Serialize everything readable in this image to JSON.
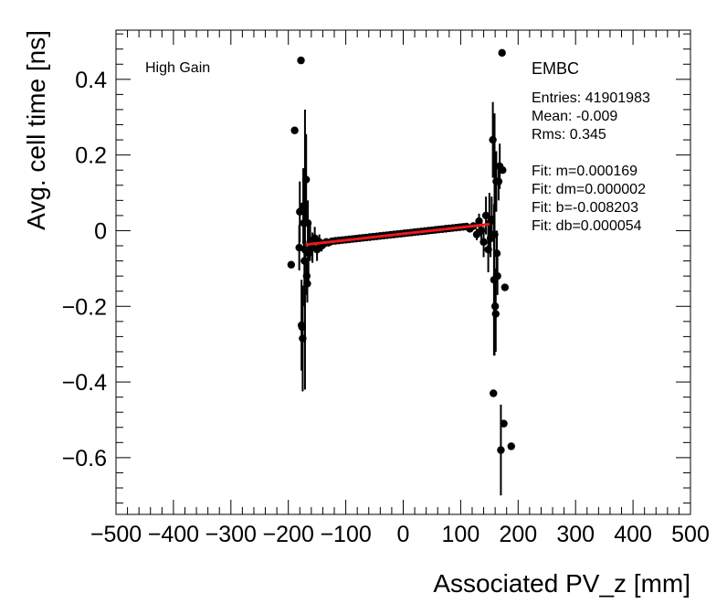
{
  "chart_data": {
    "type": "scatter",
    "title": "",
    "xlabel": "Associated PV_z [mm]",
    "ylabel": "Avg. cell time [ns]",
    "xlim": [
      -500,
      500
    ],
    "ylim": [
      -0.75,
      0.53
    ],
    "x_ticks": [
      -500,
      -400,
      -300,
      -200,
      -100,
      0,
      100,
      200,
      300,
      400,
      500
    ],
    "x_tick_labels": [
      "−500",
      "−400",
      "−300",
      "−200",
      "−100",
      "0",
      "100",
      "200",
      "300",
      "400",
      "500"
    ],
    "y_ticks": [
      -0.6,
      -0.4,
      -0.2,
      0,
      0.2,
      0.4
    ],
    "y_tick_labels": [
      "−0.6",
      "−0.4",
      "−0.2",
      "0",
      "0.2",
      "0.4"
    ],
    "grid": false,
    "legend": "none",
    "label_left": "High Gain",
    "label_right": "EMBC",
    "stats": [
      "Entries: 41901983",
      "Mean: -0.009",
      "Rms: 0.345",
      "",
      "Fit: m=0.000169",
      "Fit: dm=0.000002",
      "Fit: b=-0.008203",
      "Fit: db=0.000054"
    ],
    "series": [
      {
        "name": "data points with error bars",
        "color": "#000000",
        "points": [
          {
            "x": -195,
            "y": -0.09,
            "err": 0
          },
          {
            "x": -189,
            "y": 0.265,
            "err": 0
          },
          {
            "x": -181,
            "y": -0.045,
            "err": 0.06
          },
          {
            "x": -180,
            "y": 0.05,
            "err": 0.08
          },
          {
            "x": -178,
            "y": 0.45,
            "err": 0
          },
          {
            "x": -177,
            "y": -0.25,
            "err": 0.12
          },
          {
            "x": -176,
            "y": -0.255,
            "err": 0.1
          },
          {
            "x": -175,
            "y": -0.285,
            "err": 0.14
          },
          {
            "x": -174,
            "y": 0.065,
            "err": 0.1
          },
          {
            "x": -173,
            "y": 0.02,
            "err": 0.08
          },
          {
            "x": -172,
            "y": -0.08,
            "err": 0.12
          },
          {
            "x": -171,
            "y": -0.05,
            "err": 0.37
          },
          {
            "x": -169,
            "y": 0.135,
            "err": 0.12
          },
          {
            "x": -168,
            "y": -0.12,
            "err": 0.05
          },
          {
            "x": -167,
            "y": -0.14,
            "err": 0.05
          },
          {
            "x": -166,
            "y": 0.02,
            "err": 0.06
          },
          {
            "x": -165,
            "y": -0.06,
            "err": 0.08
          },
          {
            "x": -162,
            "y": -0.03,
            "err": 0.05
          },
          {
            "x": -158,
            "y": -0.045,
            "err": 0.04
          },
          {
            "x": -154,
            "y": -0.02,
            "err": 0.03
          },
          {
            "x": -150,
            "y": -0.05,
            "err": 0.03
          },
          {
            "x": -146,
            "y": -0.03,
            "err": 0.02
          },
          {
            "x": -142,
            "y": -0.04,
            "err": 0.015
          },
          {
            "x": -138,
            "y": -0.035,
            "err": 0.012
          },
          {
            "x": -134,
            "y": -0.03,
            "err": 0.01
          },
          {
            "x": -130,
            "y": -0.032,
            "err": 0.008
          },
          {
            "x": -124,
            "y": -0.028,
            "err": 0.006
          },
          {
            "x": -118,
            "y": -0.027,
            "err": 0.005
          },
          {
            "x": -112,
            "y": -0.026,
            "err": 0.004
          },
          {
            "x": -106,
            "y": -0.025,
            "err": 0.004
          },
          {
            "x": -100,
            "y": -0.024,
            "err": 0.003
          },
          {
            "x": -94,
            "y": -0.023,
            "err": 0.003
          },
          {
            "x": -88,
            "y": -0.022,
            "err": 0.003
          },
          {
            "x": -82,
            "y": -0.021,
            "err": 0.003
          },
          {
            "x": -76,
            "y": -0.02,
            "err": 0.002
          },
          {
            "x": -70,
            "y": -0.019,
            "err": 0.002
          },
          {
            "x": -64,
            "y": -0.018,
            "err": 0.002
          },
          {
            "x": -58,
            "y": -0.017,
            "err": 0.002
          },
          {
            "x": -52,
            "y": -0.016,
            "err": 0.002
          },
          {
            "x": -46,
            "y": -0.015,
            "err": 0.002
          },
          {
            "x": -40,
            "y": -0.014,
            "err": 0.002
          },
          {
            "x": -34,
            "y": -0.013,
            "err": 0.002
          },
          {
            "x": -28,
            "y": -0.012,
            "err": 0.002
          },
          {
            "x": -22,
            "y": -0.011,
            "err": 0.002
          },
          {
            "x": -16,
            "y": -0.01,
            "err": 0.002
          },
          {
            "x": -10,
            "y": -0.009,
            "err": 0.002
          },
          {
            "x": -4,
            "y": -0.008,
            "err": 0.002
          },
          {
            "x": 2,
            "y": -0.007,
            "err": 0.002
          },
          {
            "x": 8,
            "y": -0.006,
            "err": 0.002
          },
          {
            "x": 14,
            "y": -0.005,
            "err": 0.002
          },
          {
            "x": 20,
            "y": -0.004,
            "err": 0.002
          },
          {
            "x": 26,
            "y": -0.003,
            "err": 0.002
          },
          {
            "x": 32,
            "y": -0.002,
            "err": 0.002
          },
          {
            "x": 38,
            "y": -0.001,
            "err": 0.002
          },
          {
            "x": 44,
            "y": 0.0,
            "err": 0.002
          },
          {
            "x": 50,
            "y": 0.001,
            "err": 0.002
          },
          {
            "x": 56,
            "y": 0.002,
            "err": 0.002
          },
          {
            "x": 62,
            "y": 0.003,
            "err": 0.003
          },
          {
            "x": 68,
            "y": 0.004,
            "err": 0.003
          },
          {
            "x": 74,
            "y": 0.005,
            "err": 0.003
          },
          {
            "x": 80,
            "y": 0.006,
            "err": 0.003
          },
          {
            "x": 86,
            "y": 0.007,
            "err": 0.003
          },
          {
            "x": 92,
            "y": 0.008,
            "err": 0.004
          },
          {
            "x": 98,
            "y": 0.009,
            "err": 0.004
          },
          {
            "x": 104,
            "y": 0.01,
            "err": 0.005
          },
          {
            "x": 110,
            "y": 0.011,
            "err": 0.006
          },
          {
            "x": 116,
            "y": 0.005,
            "err": 0.008
          },
          {
            "x": 122,
            "y": 0.012,
            "err": 0.01
          },
          {
            "x": 128,
            "y": -0.01,
            "err": 0.015
          },
          {
            "x": 132,
            "y": 0.025,
            "err": 0.02
          },
          {
            "x": 136,
            "y": 0.0,
            "err": 0.03
          },
          {
            "x": 140,
            "y": -0.03,
            "err": 0.04
          },
          {
            "x": 144,
            "y": 0.04,
            "err": 0.05
          },
          {
            "x": 148,
            "y": -0.05,
            "err": 0.06
          },
          {
            "x": 150,
            "y": 0.02,
            "err": 0.08
          },
          {
            "x": 152,
            "y": -0.02,
            "err": 0.05
          },
          {
            "x": 154,
            "y": 0.03,
            "err": 0.06
          },
          {
            "x": 156,
            "y": 0.24,
            "err": 0.1
          },
          {
            "x": 157,
            "y": -0.43,
            "err": 0
          },
          {
            "x": 158,
            "y": -0.13,
            "err": 0.2
          },
          {
            "x": 159,
            "y": -0.01,
            "err": 0.32
          },
          {
            "x": 160,
            "y": -0.2,
            "err": 0.1
          },
          {
            "x": 161,
            "y": -0.22,
            "err": 0.1
          },
          {
            "x": 162,
            "y": 0.13,
            "err": 0.08
          },
          {
            "x": 163,
            "y": -0.06,
            "err": 0.06
          },
          {
            "x": 164,
            "y": -0.12,
            "err": 0.05
          },
          {
            "x": 166,
            "y": 0.13,
            "err": 0.05
          },
          {
            "x": 168,
            "y": 0.17,
            "err": 0.06
          },
          {
            "x": 170,
            "y": -0.58,
            "err": 0.12
          },
          {
            "x": 172,
            "y": 0.47,
            "err": 0
          },
          {
            "x": 173,
            "y": 0.16,
            "err": 0
          },
          {
            "x": 175,
            "y": -0.51,
            "err": 0
          },
          {
            "x": 177,
            "y": -0.15,
            "err": 0
          },
          {
            "x": 188,
            "y": -0.57,
            "err": 0
          }
        ]
      },
      {
        "name": "linear fit",
        "color": "#e8191b",
        "x": [
          -170,
          150
        ],
        "y": [
          -0.0369,
          0.0171
        ]
      }
    ]
  }
}
